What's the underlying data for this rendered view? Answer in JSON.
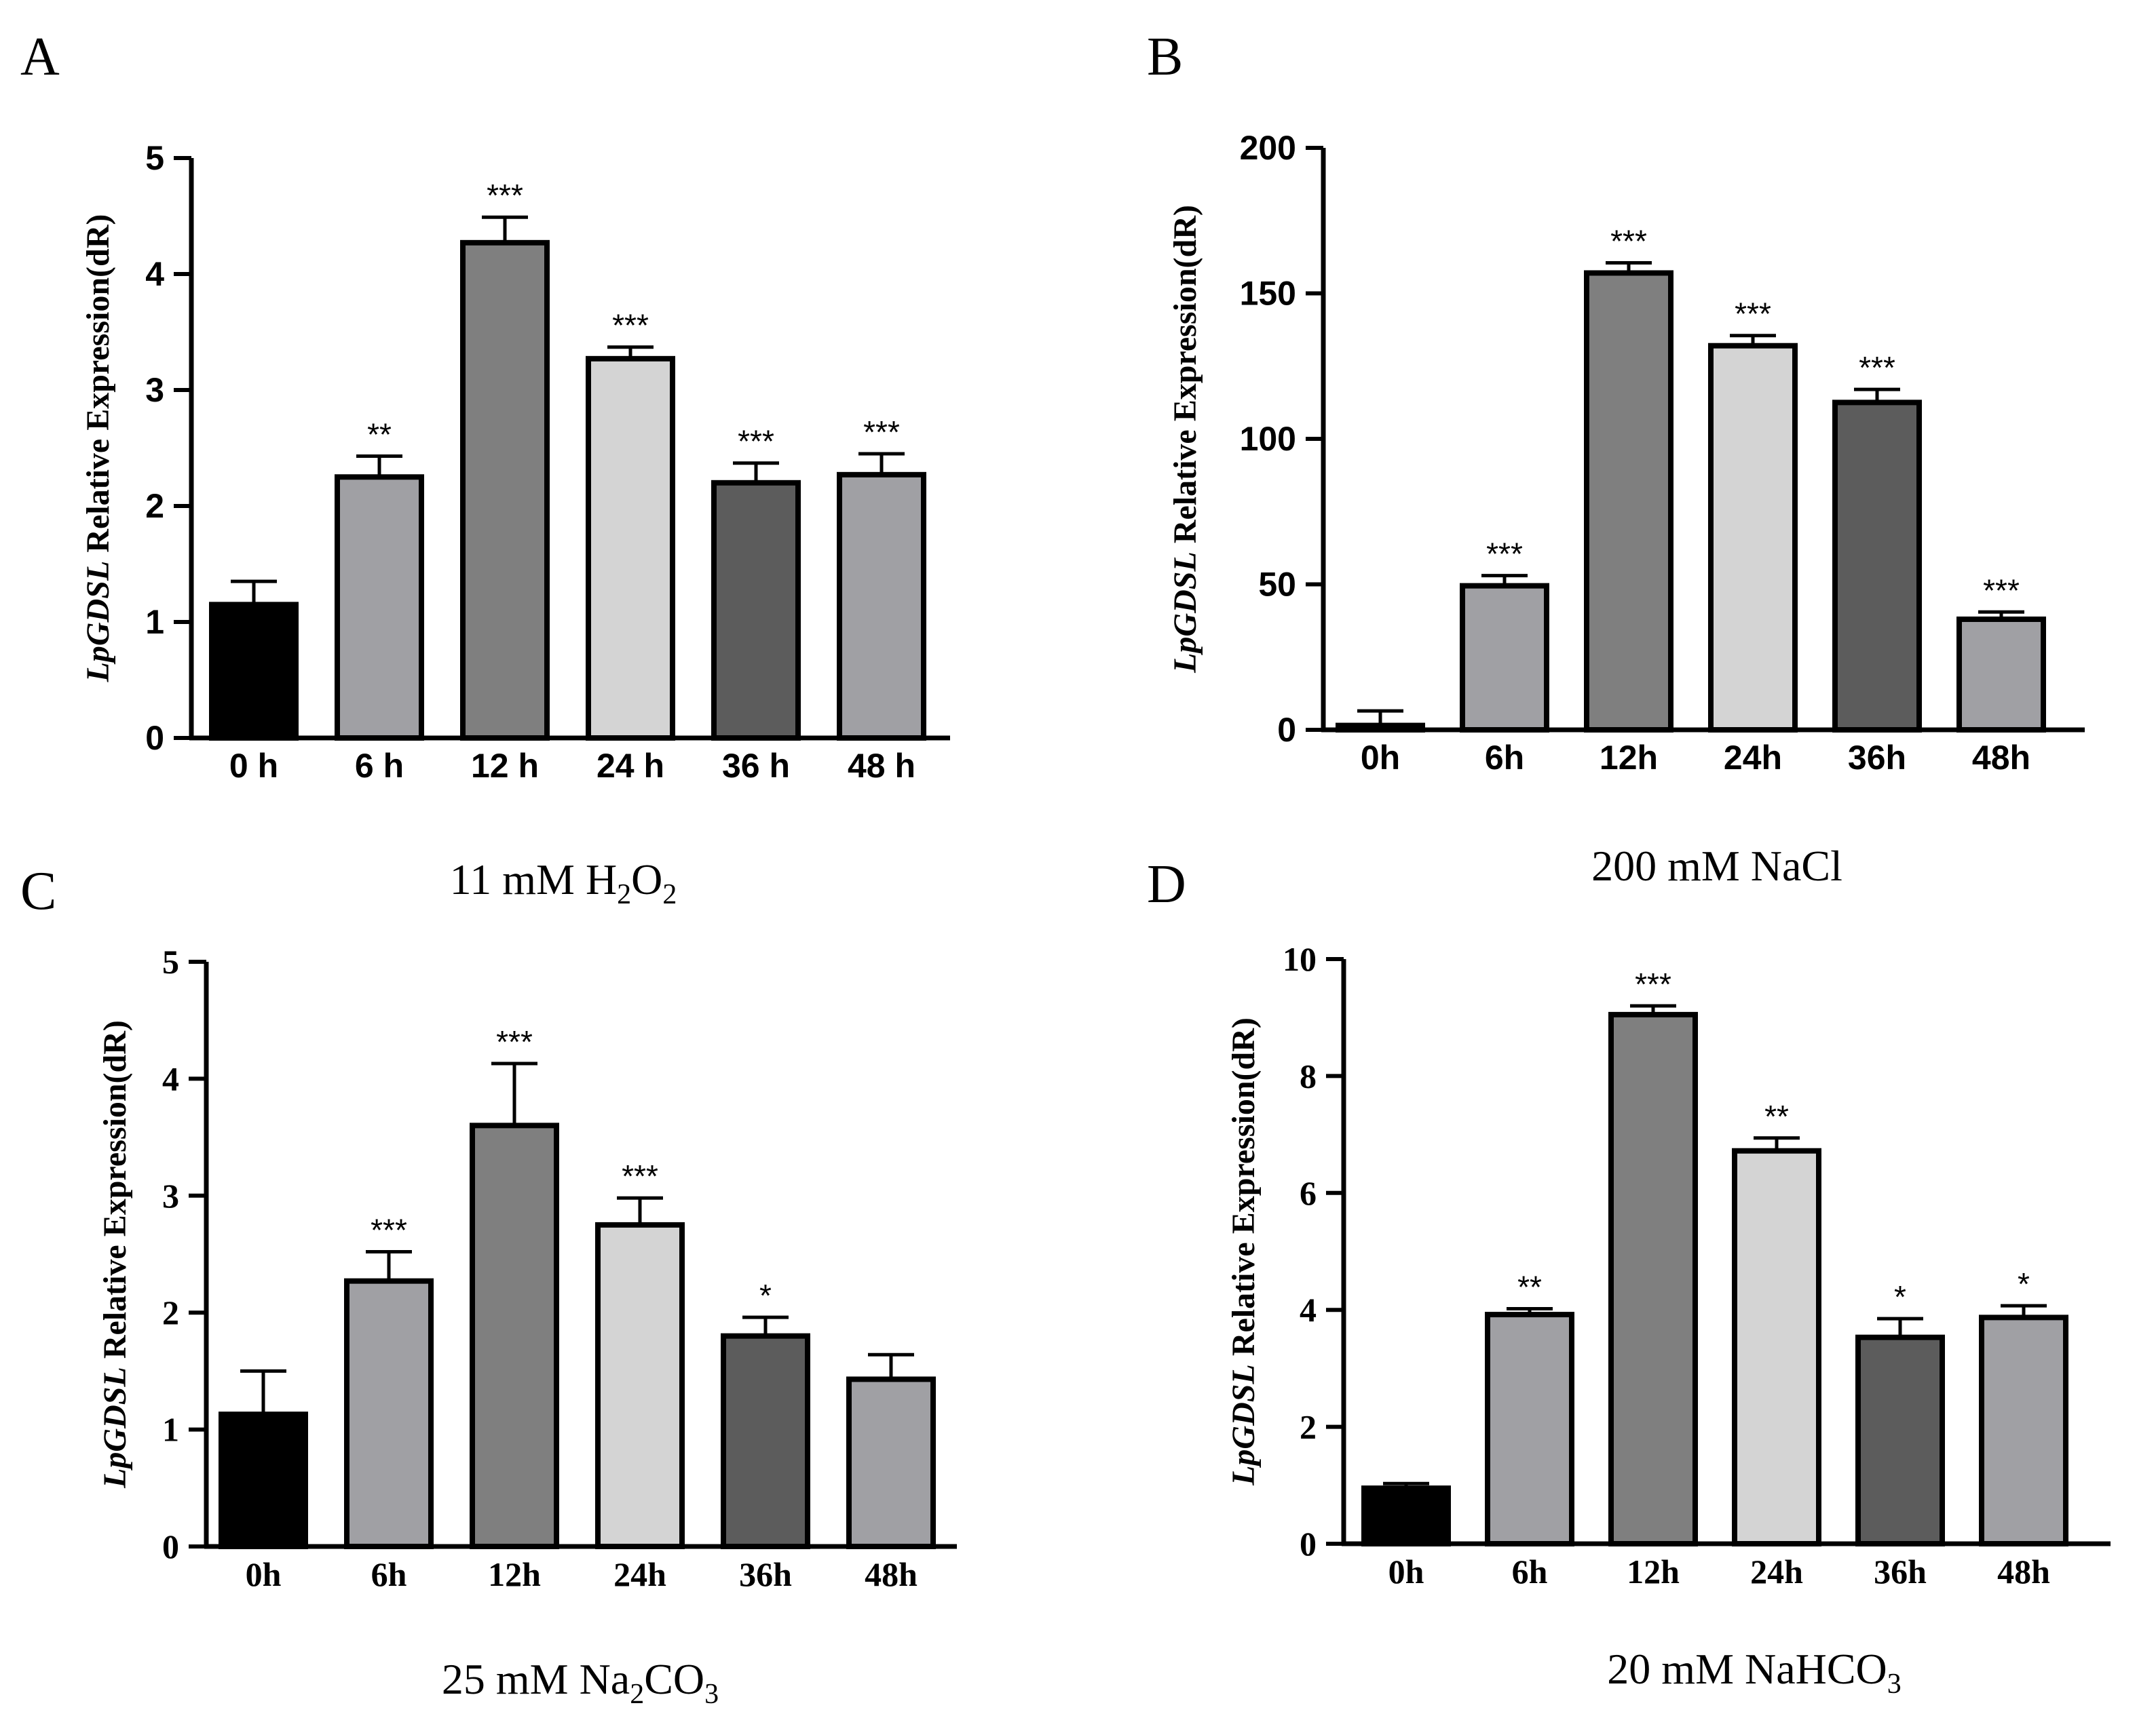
{
  "chart_data": [
    {
      "type": "bar",
      "panel": "A",
      "caption": {
        "text": "11 mM H",
        "sub1": "2",
        "mid": "O",
        "sub2": "2"
      },
      "ylabel_italic": "LpGDSL",
      "ylabel_rest": " Relative Expression(dR)",
      "categories": [
        "0 h",
        "6 h",
        "12 h",
        "24 h",
        "36 h",
        "48 h"
      ],
      "values": [
        1.15,
        2.25,
        4.27,
        3.27,
        2.2,
        2.27
      ],
      "errors": [
        0.2,
        0.18,
        0.22,
        0.1,
        0.17,
        0.18
      ],
      "significance": [
        "",
        "**",
        "***",
        "***",
        "***",
        "***"
      ],
      "ylim": [
        0,
        5
      ],
      "yticks": [
        0,
        1,
        2,
        3,
        4,
        5
      ],
      "colors": [
        "#000000",
        "#a0a0a4",
        "#7f7f7f",
        "#d4d4d4",
        "#5c5c5c",
        "#a0a0a4"
      ]
    },
    {
      "type": "bar",
      "panel": "B",
      "caption": {
        "text": "200 mM NaCl"
      },
      "ylabel_italic": "LpGDSL",
      "ylabel_rest": " Relative Expression(dR)",
      "categories": [
        "0h",
        "6h",
        "12h",
        "24h",
        "36h",
        "48h"
      ],
      "values": [
        1.5,
        49.5,
        157,
        132,
        112.5,
        38
      ],
      "errors": [
        5,
        3.5,
        3.5,
        3.5,
        4.5,
        2.5
      ],
      "significance": [
        "",
        "***",
        "***",
        "***",
        "***",
        "***"
      ],
      "ylim": [
        0,
        200
      ],
      "yticks": [
        0,
        50,
        100,
        150,
        200
      ],
      "colors": [
        "#000000",
        "#a0a0a4",
        "#7f7f7f",
        "#d4d4d4",
        "#5c5c5c",
        "#a0a0a4"
      ]
    },
    {
      "type": "bar",
      "panel": "C",
      "caption": {
        "text": "25 mM Na",
        "sub1": "2",
        "mid": "CO",
        "sub2": "3"
      },
      "ylabel_italic": "LpGDSL",
      "ylabel_rest": " Relative Expression(dR)",
      "categories": [
        "0h",
        "6h",
        "12h",
        "24h",
        "36h",
        "48h"
      ],
      "values": [
        1.13,
        2.27,
        3.6,
        2.75,
        1.8,
        1.43
      ],
      "errors": [
        0.37,
        0.25,
        0.53,
        0.23,
        0.16,
        0.21
      ],
      "significance": [
        "",
        "***",
        "***",
        "***",
        "*",
        ""
      ],
      "ylim": [
        0,
        5
      ],
      "yticks": [
        0,
        1,
        2,
        3,
        4,
        5
      ],
      "colors": [
        "#000000",
        "#a0a0a4",
        "#7f7f7f",
        "#d4d4d4",
        "#5c5c5c",
        "#a0a0a4"
      ]
    },
    {
      "type": "bar",
      "panel": "D",
      "caption": {
        "text": "20 mM NaHCO",
        "sub1": "3"
      },
      "ylabel_italic": "LpGDSL",
      "ylabel_rest": " Relative Expression(dR)",
      "categories": [
        "0h",
        "6h",
        "12h",
        "24h",
        "36h",
        "48h"
      ],
      "values": [
        0.95,
        3.92,
        9.05,
        6.72,
        3.53,
        3.87
      ],
      "errors": [
        0.08,
        0.1,
        0.15,
        0.22,
        0.32,
        0.2
      ],
      "significance": [
        "",
        "**",
        "***",
        "**",
        "*",
        "*"
      ],
      "ylim": [
        0,
        10
      ],
      "yticks": [
        0,
        2,
        4,
        6,
        8,
        10
      ],
      "colors": [
        "#000000",
        "#a0a0a4",
        "#7f7f7f",
        "#d4d4d4",
        "#5c5c5c",
        "#a0a0a4"
      ]
    }
  ]
}
